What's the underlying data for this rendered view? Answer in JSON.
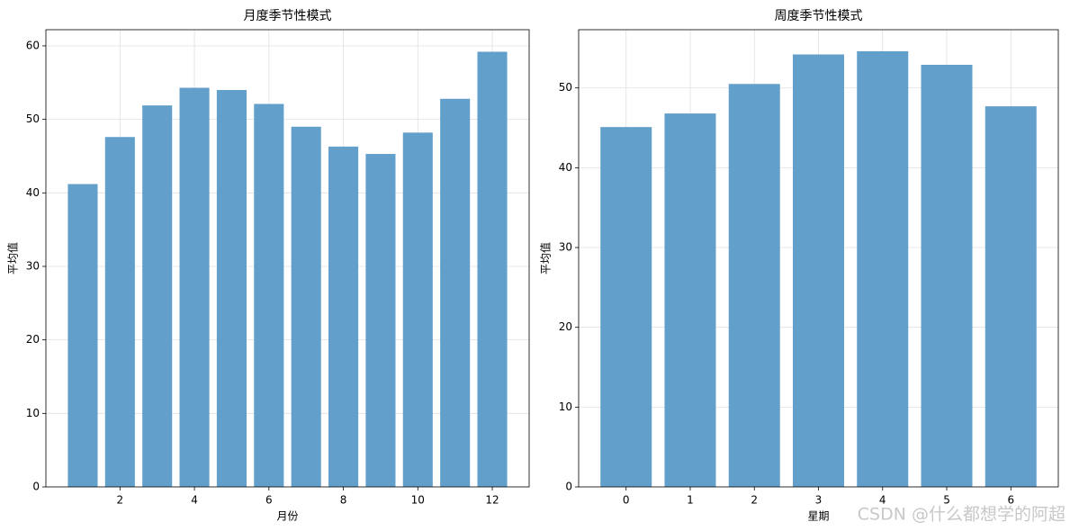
{
  "chart_data": [
    {
      "type": "bar",
      "title": "月度季节性模式",
      "x_label": "月份",
      "y_label": "平均值",
      "x": [
        1,
        2,
        3,
        4,
        5,
        6,
        7,
        8,
        9,
        10,
        11,
        12
      ],
      "values": [
        41.2,
        47.6,
        51.9,
        54.3,
        54.0,
        52.1,
        49.0,
        46.3,
        45.3,
        48.2,
        52.8,
        59.2
      ],
      "color": "#62a0cb",
      "xlim": [
        0.01,
        12.99
      ],
      "xticks": [
        2,
        4,
        6,
        8,
        10,
        12
      ],
      "ylim": [
        0,
        62.2
      ],
      "yticks": [
        0,
        10,
        20,
        30,
        40,
        50,
        60
      ],
      "grid": true
    },
    {
      "type": "bar",
      "title": "周度季节性模式",
      "x_label": "星期",
      "y_label": "平均值",
      "x": [
        0,
        1,
        2,
        3,
        4,
        5,
        6
      ],
      "values": [
        45.1,
        46.8,
        50.5,
        54.2,
        54.6,
        52.9,
        47.7
      ],
      "color": "#62a0cb",
      "xlim": [
        -0.74,
        6.74
      ],
      "xticks": [
        0,
        1,
        2,
        3,
        4,
        5,
        6
      ],
      "ylim": [
        0,
        57.3
      ],
      "yticks": [
        0,
        10,
        20,
        30,
        40,
        50
      ],
      "grid": true
    }
  ],
  "watermark": "CSDN @什么都想学的阿超"
}
